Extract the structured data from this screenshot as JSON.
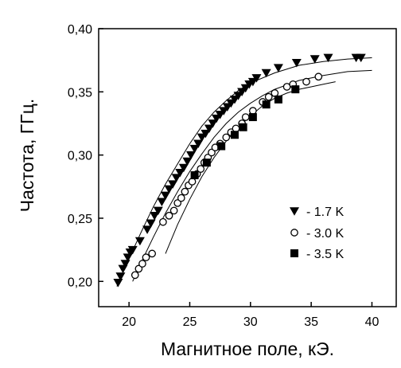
{
  "chart_data": {
    "type": "scatter",
    "title": "",
    "xlabel": "Магнитное поле, кЭ.",
    "ylabel": "Частота, ГГц.",
    "xlim": [
      17.5,
      42
    ],
    "ylim": [
      0.18,
      0.4
    ],
    "x_ticks": [
      20,
      25,
      30,
      35,
      40
    ],
    "x_tick_labels": [
      "20",
      "25",
      "30",
      "35",
      "40"
    ],
    "y_ticks": [
      0.2,
      0.25,
      0.3,
      0.35,
      0.4
    ],
    "y_tick_labels": [
      "0,20",
      "0,25",
      "0,30",
      "0,35",
      "0,40"
    ],
    "grid": false,
    "legend_position": "center-right",
    "series": [
      {
        "name": "- 1.7 K",
        "marker": "triangle-down",
        "color": "#000000",
        "x": [
          19.1,
          19.3,
          19.5,
          19.7,
          19.9,
          20.1,
          20.3,
          20.9,
          21.5,
          21.8,
          22.1,
          22.4,
          22.7,
          23.0,
          23.3,
          23.6,
          23.9,
          24.2,
          24.5,
          24.8,
          25.1,
          25.4,
          25.7,
          26.0,
          26.3,
          26.6,
          26.9,
          27.2,
          27.5,
          27.8,
          28.1,
          28.4,
          28.7,
          29.0,
          29.3,
          29.6,
          29.9,
          30.2,
          30.5,
          31.3,
          32.3,
          33.8,
          35.3,
          36.4,
          38.7,
          39.1
        ],
        "y": [
          0.199,
          0.204,
          0.21,
          0.214,
          0.219,
          0.223,
          0.225,
          0.232,
          0.241,
          0.246,
          0.252,
          0.256,
          0.263,
          0.268,
          0.273,
          0.277,
          0.282,
          0.286,
          0.29,
          0.295,
          0.3,
          0.305,
          0.309,
          0.314,
          0.317,
          0.321,
          0.325,
          0.329,
          0.332,
          0.335,
          0.338,
          0.341,
          0.344,
          0.347,
          0.35,
          0.353,
          0.356,
          0.358,
          0.361,
          0.365,
          0.369,
          0.373,
          0.376,
          0.377,
          0.377,
          0.377
        ]
      },
      {
        "name": "- 3.0 K",
        "marker": "circle-open",
        "color": "#000000",
        "x": [
          20.5,
          20.8,
          21.1,
          21.4,
          21.9,
          22.8,
          23.3,
          23.7,
          24.0,
          24.3,
          24.6,
          24.9,
          25.2,
          25.6,
          25.9,
          26.2,
          26.5,
          26.8,
          27.1,
          27.5,
          28.0,
          28.4,
          28.8,
          29.3,
          29.6,
          30.2,
          31.0,
          31.5,
          32.0,
          33.0,
          33.5,
          34.6,
          35.6
        ],
        "y": [
          0.205,
          0.21,
          0.214,
          0.219,
          0.222,
          0.247,
          0.252,
          0.256,
          0.262,
          0.266,
          0.271,
          0.276,
          0.279,
          0.285,
          0.289,
          0.294,
          0.298,
          0.302,
          0.306,
          0.309,
          0.314,
          0.318,
          0.321,
          0.325,
          0.33,
          0.335,
          0.342,
          0.346,
          0.349,
          0.354,
          0.356,
          0.358,
          0.362
        ]
      },
      {
        "name": "- 3.5 K",
        "marker": "square",
        "color": "#000000",
        "x": [
          25.4,
          26.4,
          27.6,
          28.7,
          29.4,
          30.2,
          31.3,
          32.3,
          33.7
        ],
        "y": [
          0.284,
          0.294,
          0.307,
          0.316,
          0.322,
          0.33,
          0.34,
          0.344,
          0.352
        ]
      }
    ],
    "fit_curves": [
      {
        "x": [
          19.0,
          20.0,
          21.0,
          22.0,
          23.0,
          24.0,
          25.0,
          26.0,
          27.0,
          28.0,
          29.0,
          30.0,
          32.0,
          34.0,
          36.0,
          38.0,
          40.0
        ],
        "y": [
          0.196,
          0.218,
          0.239,
          0.259,
          0.277,
          0.293,
          0.309,
          0.323,
          0.334,
          0.343,
          0.351,
          0.357,
          0.365,
          0.371,
          0.374,
          0.376,
          0.377
        ]
      },
      {
        "x": [
          20.3,
          21.0,
          22.0,
          23.0,
          24.0,
          25.0,
          26.0,
          27.0,
          28.0,
          29.0,
          30.0,
          31.0,
          32.0,
          34.0,
          36.0,
          38.0,
          40.0
        ],
        "y": [
          0.2,
          0.215,
          0.235,
          0.254,
          0.271,
          0.287,
          0.301,
          0.314,
          0.325,
          0.334,
          0.341,
          0.347,
          0.352,
          0.359,
          0.363,
          0.366,
          0.367
        ]
      },
      {
        "x": [
          23.0,
          24.0,
          25.0,
          26.0,
          27.0,
          28.0,
          29.0,
          30.0,
          31.0,
          32.0,
          33.0,
          34.0,
          35.0,
          36.0,
          37.0
        ],
        "y": [
          0.222,
          0.245,
          0.265,
          0.283,
          0.298,
          0.311,
          0.322,
          0.331,
          0.339,
          0.345,
          0.349,
          0.352,
          0.354,
          0.356,
          0.358
        ]
      }
    ]
  }
}
